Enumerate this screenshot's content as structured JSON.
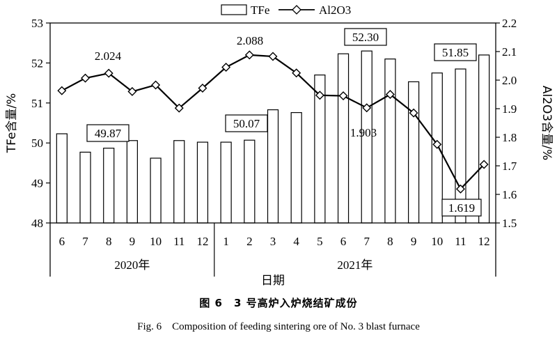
{
  "chart_data": {
    "type": "bar+line",
    "categories": [
      "6",
      "7",
      "8",
      "9",
      "10",
      "11",
      "12",
      "1",
      "2",
      "3",
      "4",
      "5",
      "6",
      "7",
      "8",
      "9",
      "10",
      "11",
      "12"
    ],
    "year_groups": [
      {
        "label": "2020年",
        "count": 7
      },
      {
        "label": "2021年",
        "count": 12
      }
    ],
    "series": [
      {
        "name": "TFe",
        "type": "bar",
        "axis": "left",
        "values": [
          50.23,
          49.77,
          49.87,
          50.06,
          49.62,
          50.06,
          50.02,
          50.02,
          50.07,
          50.83,
          50.76,
          51.7,
          52.23,
          52.3,
          52.1,
          51.53,
          51.75,
          51.85,
          52.2
        ]
      },
      {
        "name": "Al2O3",
        "type": "line",
        "axis": "right",
        "values": [
          1.963,
          2.007,
          2.024,
          1.96,
          1.983,
          1.902,
          1.972,
          2.045,
          2.088,
          2.083,
          2.025,
          1.947,
          1.945,
          1.903,
          1.95,
          1.885,
          1.775,
          1.619,
          1.705
        ]
      }
    ],
    "left_axis": {
      "label": "TFe含量/%",
      "ylim": [
        48,
        53
      ],
      "ticks": [
        "48",
        "49",
        "50",
        "51",
        "52",
        "53"
      ]
    },
    "right_axis": {
      "label": "Al2O3含量/%",
      "ylim": [
        1.5,
        2.2
      ],
      "ticks": [
        "1.5",
        "1.6",
        "1.7",
        "1.8",
        "1.9",
        "2.0",
        "2.1",
        "2.2"
      ]
    },
    "xlabel": "日期",
    "legend": {
      "items": [
        "TFe",
        "Al2O3"
      ],
      "position": "top"
    },
    "annotations": [
      {
        "text": "49.87",
        "boxed": true
      },
      {
        "text": "50.07",
        "boxed": true
      },
      {
        "text": "52.30",
        "boxed": true
      },
      {
        "text": "51.85",
        "boxed": true
      },
      {
        "text": "2.024",
        "boxed": false
      },
      {
        "text": "2.088",
        "boxed": false
      },
      {
        "text": "1.903",
        "boxed": false
      },
      {
        "text": "1.619",
        "boxed": true
      }
    ]
  },
  "caption": {
    "cn": "图 6　3 号高炉入炉烧结矿成份",
    "en": "Fig. 6　Composition of feeding sintering ore of No. 3 blast furnace"
  }
}
